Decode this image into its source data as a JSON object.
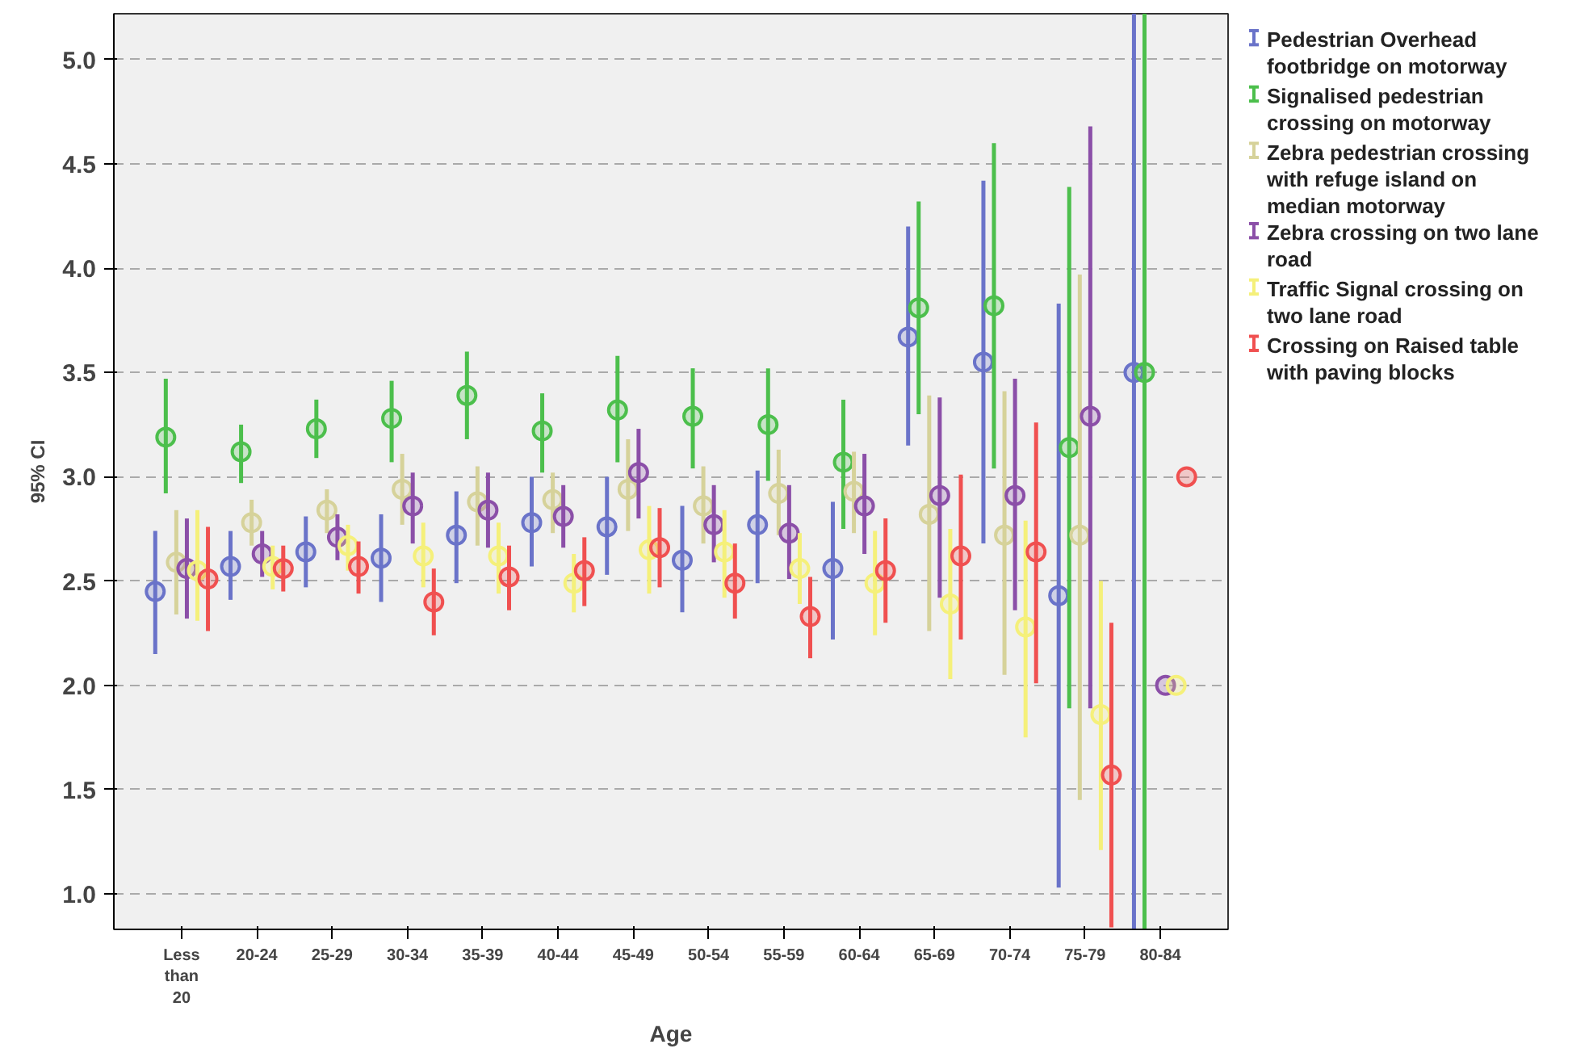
{
  "chart_data": {
    "type": "scatter",
    "xlabel": "Age",
    "ylabel": "95% CI",
    "categories": [
      "Less than 20",
      "20-24",
      "25-29",
      "30-34",
      "35-39",
      "40-44",
      "45-49",
      "50-54",
      "55-59",
      "60-64",
      "65-69",
      "70-74",
      "75-79",
      "80-84"
    ],
    "ylim": [
      0.83,
      5.22
    ],
    "yticks": [
      {
        "value": 1,
        "label": "1.0"
      },
      1.5,
      {
        "value": 2,
        "label": "2.0"
      },
      2.5,
      {
        "value": 3,
        "label": "3.0"
      },
      3.5,
      {
        "value": 4,
        "label": "4.0"
      },
      4.5,
      {
        "value": 5,
        "label": "5.0"
      }
    ],
    "grid": "y",
    "legend": "right",
    "marker": "circle",
    "series": [
      {
        "name": "Pedestrian Overhead footbridge on motorway",
        "color": "#6a73c9",
        "values": [
          2.45,
          2.57,
          2.64,
          2.61,
          2.72,
          2.78,
          2.76,
          2.6,
          2.77,
          2.56,
          3.67,
          3.55,
          2.43,
          3.5
        ],
        "errors": [
          [
            2.15,
            2.74
          ],
          [
            2.41,
            2.74
          ],
          [
            2.47,
            2.81
          ],
          [
            2.4,
            2.82
          ],
          [
            2.49,
            2.93
          ],
          [
            2.57,
            3.0
          ],
          [
            2.53,
            3.0
          ],
          [
            2.35,
            2.86
          ],
          [
            2.49,
            3.03
          ],
          [
            2.22,
            2.88
          ],
          [
            3.15,
            4.2
          ],
          [
            2.68,
            4.42
          ],
          [
            1.03,
            3.83
          ],
          [
            0.83,
            5.22
          ]
        ]
      },
      {
        "name": "Signalised pedestrian crossing on motorway",
        "color": "#4cbf4c",
        "values": [
          3.19,
          3.12,
          3.23,
          3.28,
          3.39,
          3.22,
          3.32,
          3.29,
          3.25,
          3.07,
          3.81,
          3.82,
          3.14,
          3.5
        ],
        "errors": [
          [
            2.92,
            3.47
          ],
          [
            2.97,
            3.25
          ],
          [
            3.09,
            3.37
          ],
          [
            3.07,
            3.46
          ],
          [
            3.18,
            3.6
          ],
          [
            3.02,
            3.4
          ],
          [
            3.07,
            3.58
          ],
          [
            3.04,
            3.52
          ],
          [
            2.98,
            3.52
          ],
          [
            2.75,
            3.37
          ],
          [
            3.3,
            4.32
          ],
          [
            3.04,
            4.6
          ],
          [
            1.89,
            4.39
          ],
          [
            0.83,
            5.22
          ]
        ]
      },
      {
        "name": "Zebra pedestrian crossing with refuge island on median motorway",
        "color": "#d6d29a",
        "values": [
          2.59,
          2.78,
          2.84,
          2.94,
          2.88,
          2.89,
          2.94,
          2.86,
          2.92,
          2.93,
          2.82,
          2.72,
          2.72,
          null
        ],
        "errors": [
          [
            2.34,
            2.84
          ],
          [
            2.67,
            2.89
          ],
          [
            2.73,
            2.94
          ],
          [
            2.77,
            3.11
          ],
          [
            2.67,
            3.05
          ],
          [
            2.73,
            3.02
          ],
          [
            2.74,
            3.18
          ],
          [
            2.68,
            3.05
          ],
          [
            2.72,
            3.13
          ],
          [
            2.73,
            3.12
          ],
          [
            2.26,
            3.39
          ],
          [
            2.05,
            3.41
          ],
          [
            1.45,
            3.97
          ],
          null
        ]
      },
      {
        "name": "Zebra crossing on two lane road",
        "color": "#8b4fa8",
        "values": [
          2.56,
          2.63,
          2.71,
          2.86,
          2.84,
          2.81,
          3.02,
          2.77,
          2.73,
          2.86,
          2.91,
          2.91,
          3.29,
          2.0
        ],
        "errors": [
          [
            2.32,
            2.8
          ],
          [
            2.52,
            2.74
          ],
          [
            2.6,
            2.82
          ],
          [
            2.68,
            3.02
          ],
          [
            2.66,
            3.02
          ],
          [
            2.66,
            2.96
          ],
          [
            2.8,
            3.23
          ],
          [
            2.59,
            2.96
          ],
          [
            2.51,
            2.96
          ],
          [
            2.63,
            3.11
          ],
          [
            2.42,
            3.38
          ],
          [
            2.36,
            3.47
          ],
          [
            1.89,
            4.68
          ],
          null
        ]
      },
      {
        "name": "Traffic Signal crossing on two lane road",
        "color": "#f5f07a",
        "values": [
          2.55,
          2.57,
          2.67,
          2.62,
          2.62,
          2.49,
          2.65,
          2.64,
          2.56,
          2.49,
          2.39,
          2.28,
          1.86,
          2.0
        ],
        "errors": [
          [
            2.31,
            2.84
          ],
          [
            2.46,
            2.67
          ],
          [
            2.55,
            2.77
          ],
          [
            2.47,
            2.78
          ],
          [
            2.44,
            2.78
          ],
          [
            2.35,
            2.63
          ],
          [
            2.44,
            2.86
          ],
          [
            2.42,
            2.84
          ],
          [
            2.39,
            2.73
          ],
          [
            2.24,
            2.74
          ],
          [
            2.03,
            2.75
          ],
          [
            1.75,
            2.79
          ],
          [
            1.21,
            2.5
          ],
          null
        ]
      },
      {
        "name": "Crossing on Raised table with paving blocks",
        "color": "#f05050",
        "values": [
          2.51,
          2.56,
          2.57,
          2.4,
          2.52,
          2.55,
          2.66,
          2.49,
          2.33,
          2.55,
          2.62,
          2.64,
          1.57,
          3.0
        ],
        "errors": [
          [
            2.26,
            2.76
          ],
          [
            2.45,
            2.67
          ],
          [
            2.44,
            2.69
          ],
          [
            2.24,
            2.56
          ],
          [
            2.36,
            2.67
          ],
          [
            2.38,
            2.71
          ],
          [
            2.47,
            2.85
          ],
          [
            2.32,
            2.68
          ],
          [
            2.13,
            2.52
          ],
          [
            2.3,
            2.8
          ],
          [
            2.22,
            3.01
          ],
          [
            2.01,
            3.26
          ],
          [
            0.84,
            2.3
          ],
          null
        ]
      }
    ]
  }
}
